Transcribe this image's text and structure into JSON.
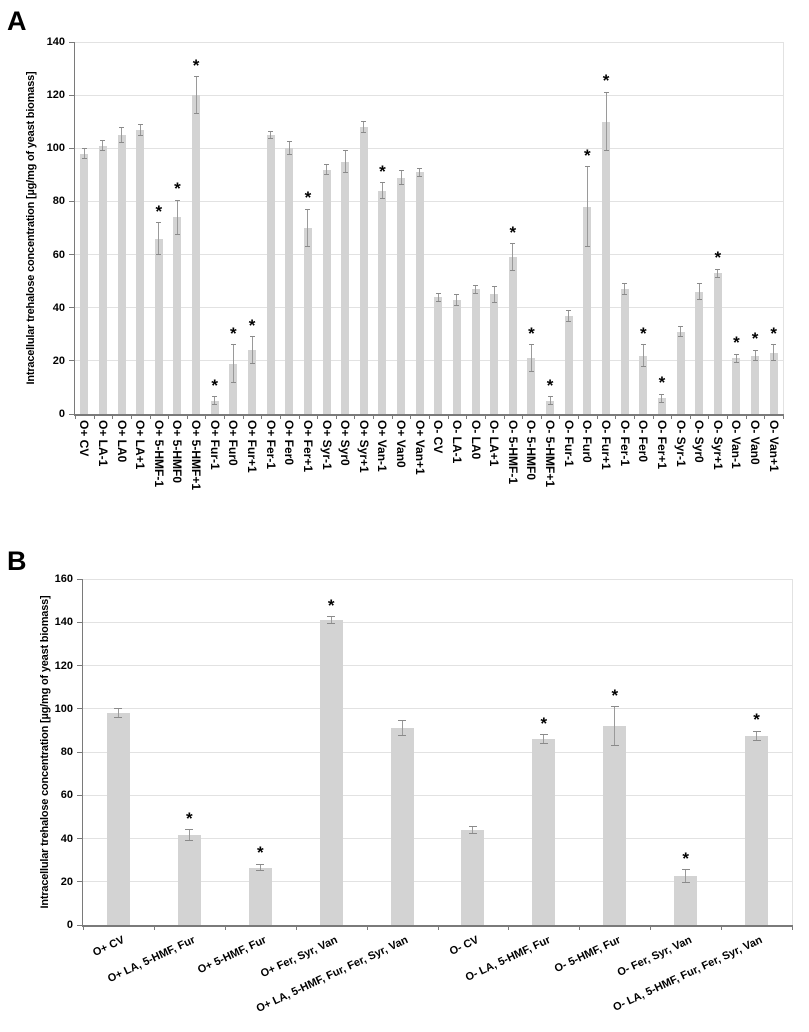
{
  "figure": {
    "background": "#ffffff",
    "bar_color": "#d3d3d3",
    "error_bar_color": "#9a9a9a",
    "error_cap_color": "#8a8a8a",
    "gridline_color": "#e2e2e2",
    "axis_color": "#7a7a7a",
    "significance_marker": "*"
  },
  "chart_data": [
    {
      "type": "bar",
      "panel_label": "A",
      "title": "",
      "xlabel": "",
      "ylabel": "Intracellular trehalose concentration [µg/mg of yeast biomass]",
      "ylim": [
        0,
        140
      ],
      "yticks": [
        0,
        20,
        40,
        60,
        80,
        100,
        120,
        140
      ],
      "grid": true,
      "legend": false,
      "error_bars": true,
      "categories": [
        "O+ CV",
        "O+ LA-1",
        "O+ LA0",
        "O+ LA+1",
        "O+ 5-HMF-1",
        "O+ 5-HMF0",
        "O+ 5-HMF+1",
        "O+ Fur-1",
        "O+ Fur0",
        "O+ Fur+1",
        "O+ Fer-1",
        "O+ Fer0",
        "O+ Fer+1",
        "O+ Syr-1",
        "O+ Syr0",
        "O+ Syr+1",
        "O+ Van-1",
        "O+ Van0",
        "O+ Van+1",
        "O- CV",
        "O- LA-1",
        "O- LA0",
        "O- LA+1",
        "O- 5-HMF-1",
        "O- 5-HMF0",
        "O- 5-HMF+1",
        "O- Fur-1",
        "O- Fur0",
        "O- Fur+1",
        "O- Fer-1",
        "O- Fer0",
        "O- Fer+1",
        "O- Syr-1",
        "O- Syr0",
        "O- Syr+1",
        "O- Van-1",
        "O- Van0",
        "O- Van+1"
      ],
      "values": [
        98,
        101,
        105,
        107,
        66,
        74,
        120,
        5,
        19,
        24,
        105,
        100,
        70,
        92,
        95,
        108,
        84,
        89,
        91,
        44,
        43,
        47,
        45,
        59,
        21,
        5,
        37,
        78,
        110,
        47,
        22,
        6,
        31,
        46,
        53,
        21,
        22,
        23
      ],
      "errors": [
        2,
        2,
        3,
        2,
        6,
        6.5,
        7,
        1.5,
        7,
        5,
        1.5,
        2.5,
        7,
        2,
        4,
        2,
        3,
        2.5,
        1.5,
        1.5,
        2,
        1.5,
        3,
        5,
        5,
        1.5,
        2,
        15,
        11,
        2,
        4,
        1.5,
        2,
        3,
        1.5,
        1.5,
        2,
        3
      ],
      "significant": [
        false,
        false,
        false,
        false,
        true,
        true,
        true,
        true,
        true,
        true,
        false,
        false,
        true,
        false,
        false,
        false,
        true,
        false,
        false,
        false,
        false,
        false,
        false,
        true,
        true,
        true,
        false,
        true,
        true,
        false,
        true,
        true,
        false,
        false,
        true,
        true,
        true,
        true
      ]
    },
    {
      "type": "bar",
      "panel_label": "B",
      "title": "",
      "xlabel": "",
      "ylabel": "Intracellular trehalose concentration [µg/mg of yeast biomass]",
      "ylim": [
        0,
        160
      ],
      "yticks": [
        0,
        20,
        40,
        60,
        80,
        100,
        120,
        140,
        160
      ],
      "grid": true,
      "legend": false,
      "error_bars": true,
      "categories": [
        "O+ CV",
        "O+ LA, 5-HMF, Fur",
        "O+ 5-HMF, Fur",
        "O+ Fer, Syr, Van",
        "O+ LA, 5-HMF, Fur, Fer, Syr, Van",
        "O- CV",
        "O- LA, 5-HMF, Fur",
        "O- 5-HMF, Fur",
        "O- Fer, Syr, Van",
        "O- LA, 5-HMF, Fur, Fer, Syr, Van"
      ],
      "values": [
        98,
        41.5,
        26.5,
        141,
        91,
        44,
        86,
        92,
        22.5,
        87.5
      ],
      "errors": [
        2,
        2.5,
        1.5,
        1.5,
        3.5,
        1.5,
        2,
        9,
        3,
        2
      ],
      "significant": [
        false,
        true,
        true,
        true,
        false,
        false,
        true,
        true,
        true,
        true
      ]
    }
  ]
}
